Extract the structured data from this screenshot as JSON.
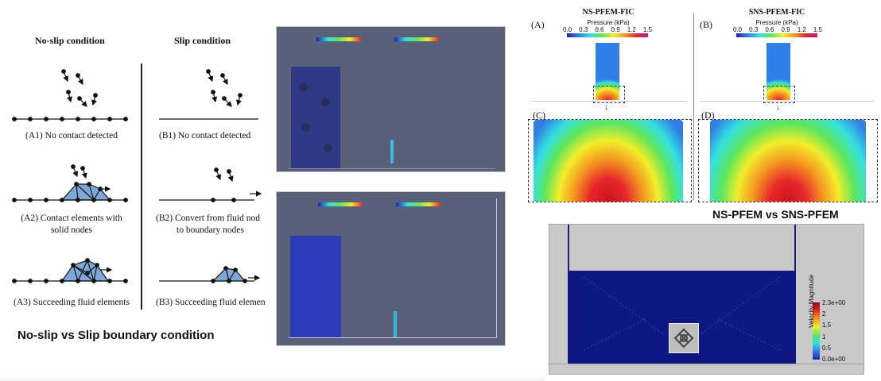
{
  "left_figure": {
    "no_slip_heading": "No-slip condition",
    "slip_heading": "Slip condition",
    "captions": {
      "a1": "(A1) No contact detected",
      "b1": "(B1) No contact detected",
      "a2_line1": "(A2) Contact elements with",
      "a2_line2": "solid nodes",
      "b2_line1": "(B2) Convert from fluid nod",
      "b2_line2": "to boundary nodes",
      "a3": "(A3) Succeeding fluid elements",
      "b3": "(B3) Succeeding fluid elemen"
    },
    "bottom_title": "No-slip vs Slip boundary condition"
  },
  "pfem_figure": {
    "labels": {
      "a": "(A)",
      "b": "(B)",
      "c": "(C)",
      "d": "(D)"
    },
    "titles": {
      "left": "NS-PFEM-FIC",
      "right": "SNS-PFEM-FIC"
    },
    "pressure_label": "Pressure (kPa)",
    "pressure_ticks": [
      "0.0",
      "0.3",
      "0.6",
      "0.9",
      "1.2",
      "1.5"
    ],
    "bottom_title": "NS-PFEM vs SNS-PFEM",
    "colors": {
      "jet": [
        "#1f1fb4",
        "#2f7fe6",
        "#33e0e0",
        "#5ce65c",
        "#f2ee2a",
        "#f49a1f",
        "#e8262b"
      ]
    }
  },
  "velocity_figure": {
    "colorbar_ticks": [
      "2.3e+00",
      "2",
      "1.5",
      "1",
      "0.5",
      "0.0e+00"
    ],
    "colorbar_label": "Velocity Magnitude"
  }
}
